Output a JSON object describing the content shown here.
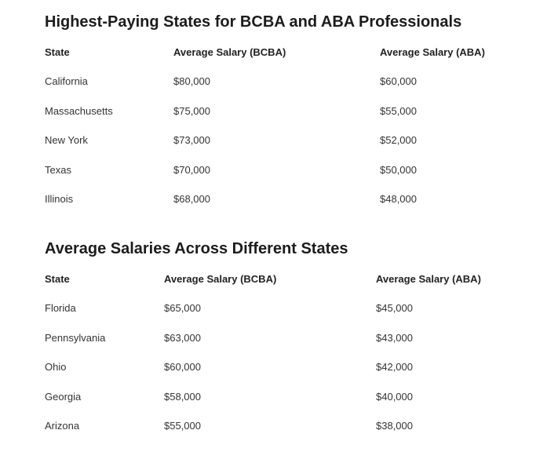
{
  "sections": [
    {
      "title": "Highest-Paying States for BCBA and ABA Professionals",
      "headers": [
        "State",
        "Average Salary (BCBA)",
        "Average Salary (ABA)"
      ],
      "rows": [
        [
          "California",
          "$80,000",
          "$60,000"
        ],
        [
          "Massachusetts",
          "$75,000",
          "$55,000"
        ],
        [
          "New York",
          "$73,000",
          "$52,000"
        ],
        [
          "Texas",
          "$70,000",
          "$50,000"
        ],
        [
          "Illinois",
          "$68,000",
          "$48,000"
        ]
      ]
    },
    {
      "title": "Average Salaries Across Different States",
      "headers": [
        "State",
        "Average Salary (BCBA)",
        "Average Salary (ABA)"
      ],
      "rows": [
        [
          "Florida",
          "$65,000",
          "$45,000"
        ],
        [
          "Pennsylvania",
          "$63,000",
          "$43,000"
        ],
        [
          "Ohio",
          "$60,000",
          "$42,000"
        ],
        [
          "Georgia",
          "$58,000",
          "$40,000"
        ],
        [
          "Arizona",
          "$55,000",
          "$38,000"
        ]
      ]
    }
  ]
}
